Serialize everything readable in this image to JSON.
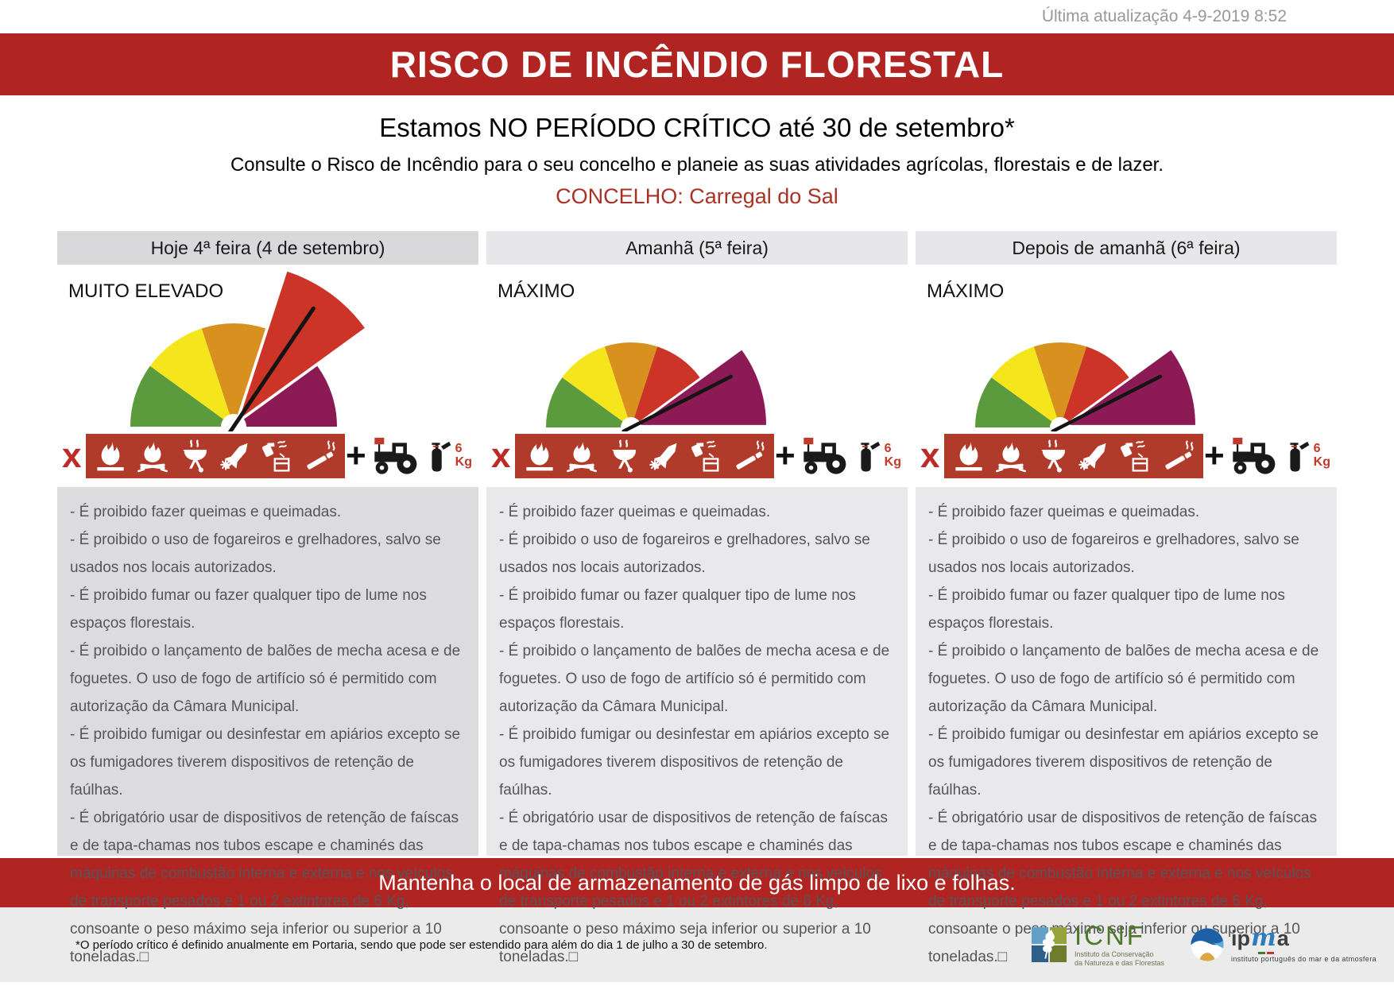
{
  "page": {
    "last_update": "Última atualização 4-9-2019 8:52",
    "title": "RISCO DE INCÊNDIO FLORESTAL",
    "critical_period": "Estamos NO PERÍODO CRÍTICO até 30 de setembro*",
    "instruction": "Consulte o Risco de Incêndio para o seu concelho e planeie as suas atividades agrícolas, florestais e de lazer.",
    "concelho": "CONCELHO: Carregal do Sal",
    "bottom_banner": "Mantenha o local de armazenamento de gás limpo de lixo e folhas.",
    "footnote": "*O período crítico é definido anualmente em Portaria, sendo que pode ser estendido para além do dia 1 de julho a 30 de setembro."
  },
  "columns": [
    {
      "day_label": "Hoje 4ª feira (4 de setembro)",
      "risk_level": "MUITO ELEVADO",
      "gauge": {
        "size": "large",
        "exploded_segment": 3,
        "needle_deg": 56
      }
    },
    {
      "day_label": "Amanhã (5ª feira)",
      "risk_level": "MÁXIMO",
      "gauge": {
        "size": "small",
        "exploded_segment": 4,
        "needle_deg": 27
      }
    },
    {
      "day_label": "Depois de amanhã (6ª feira)",
      "risk_level": "MÁXIMO",
      "gauge": {
        "size": "small",
        "exploded_segment": 4,
        "needle_deg": 27
      }
    }
  ],
  "rules": [
    "- É proibido fazer queimas e queimadas.",
    "- É proibido o uso de fogareiros e grelhadores, salvo se usados nos locais autorizados.",
    "- É proibido fumar ou fazer qualquer tipo de lume nos espaços florestais.",
    "- É proibido o lançamento de balões de mecha acesa e de foguetes. O uso de fogo de artifício só é permitido com autorização da Câmara Municipal.",
    "- É proibido fumigar ou desinfestar em apiários excepto se os fumigadores tiverem dispositivos de retenção de faúlhas.",
    "- É obrigatório usar de dispositivos de retenção de faíscas e de tapa-chamas nos tubos escape e chaminés das máquinas de combustão interna e externa e nos veículos de transporte pesados e 1 ou 2 extintores de 6 Kg,  consoante o  peso máximo seja inferior ou superior a 10 toneladas.□"
  ],
  "icons": {
    "x_label": "x",
    "plus_label": "+",
    "prohibited_icons": [
      "burn-icon",
      "campfire-icon",
      "grill-icon",
      "firework-icon",
      "bee-smoker-icon",
      "cigarette-icon"
    ],
    "mandatory_icons": [
      "tractor-icon",
      "fire-extinguisher-icon"
    ],
    "extinguisher_weight": "6",
    "extinguisher_unit": "Kg"
  },
  "logos": {
    "icnf": {
      "acronym": "ICNF",
      "subtitle_line1": "Instituto da Conservação",
      "subtitle_line2": "da Natureza e das Florestas"
    },
    "ipma": {
      "word_ip": "ip",
      "word_m": "m",
      "word_a": "a",
      "subtitle": "instituto português do mar e da atmosfera"
    }
  },
  "colors": {
    "banner_red": "#B02522",
    "bar_red": "#B13B2A",
    "x_red": "#BE2A25",
    "concelho_red": "#A93226",
    "kg_red": "#C03A2A",
    "needle": "#141414",
    "gauge_segments": [
      "#5C9B3D",
      "#F5E51C",
      "#D8911E",
      "#CB3427",
      "#8C1A55"
    ]
  },
  "chart_data": [
    {
      "type": "gauge",
      "title": "Hoje 4ª feira (4 de setembro)",
      "risk_level": "MUITO ELEVADO",
      "segments": 5,
      "segment_colors": [
        "#5C9B3D",
        "#F5E51C",
        "#D8911E",
        "#CB3427",
        "#8C1A55"
      ],
      "highlighted_segment_index": 3,
      "needle_angle_deg_from_right_horizontal": 56
    },
    {
      "type": "gauge",
      "title": "Amanhã (5ª feira)",
      "risk_level": "MÁXIMO",
      "segments": 5,
      "segment_colors": [
        "#5C9B3D",
        "#F5E51C",
        "#D8911E",
        "#CB3427",
        "#8C1A55"
      ],
      "highlighted_segment_index": 4,
      "needle_angle_deg_from_right_horizontal": 27
    },
    {
      "type": "gauge",
      "title": "Depois de amanhã (6ª feira)",
      "risk_level": "MÁXIMO",
      "segments": 5,
      "segment_colors": [
        "#5C9B3D",
        "#F5E51C",
        "#D8911E",
        "#CB3427",
        "#8C1A55"
      ],
      "highlighted_segment_index": 4,
      "needle_angle_deg_from_right_horizontal": 27
    }
  ]
}
